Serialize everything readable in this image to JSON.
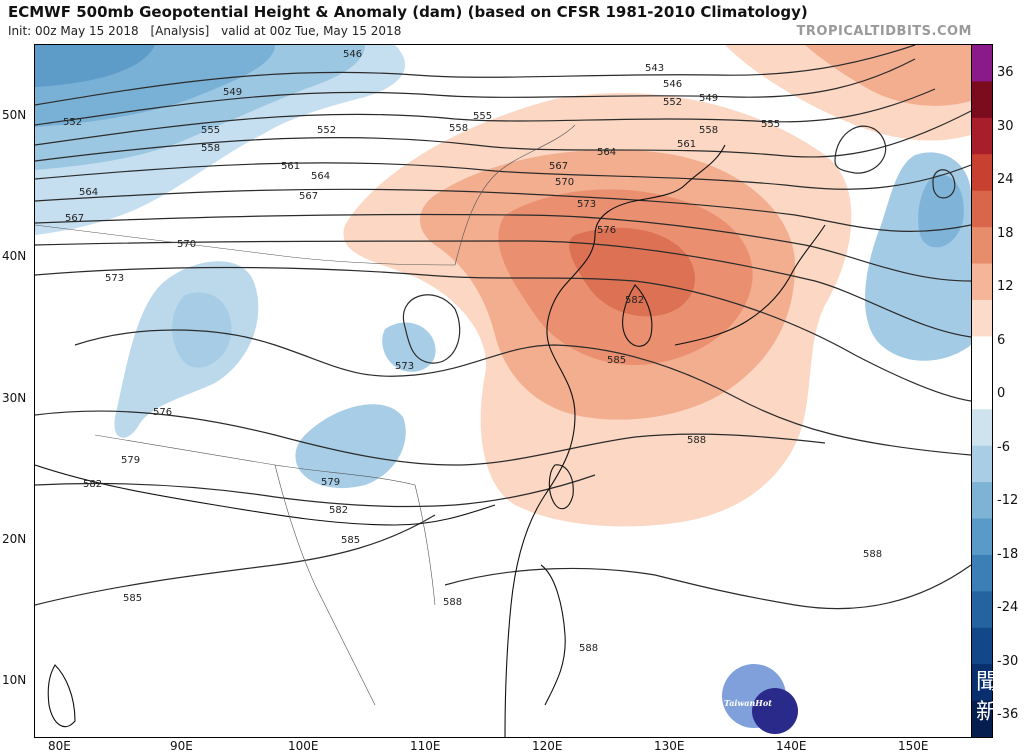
{
  "header": {
    "title": "ECMWF 500mb Geopotential Height & Anomaly (dam) (based on CFSR 1981-2010 Climatology)",
    "init": "Init: 00z May 15 2018",
    "analysis": "[Analysis]",
    "valid": "valid at 00z Tue, May 15 2018",
    "brand": "TROPICALTIDBITS.COM"
  },
  "map": {
    "lat_labels": [
      "50N",
      "40N",
      "30N",
      "20N",
      "10N"
    ],
    "lon_labels": [
      "80E",
      "90E",
      "100E",
      "110E",
      "120E",
      "130E",
      "140E",
      "150E"
    ],
    "contour_labels": [
      "546",
      "543",
      "546",
      "549",
      "549",
      "552",
      "552",
      "552",
      "555",
      "555",
      "555",
      "558",
      "558",
      "558",
      "561",
      "561",
      "564",
      "564",
      "564",
      "567",
      "567",
      "567",
      "570",
      "570",
      "573",
      "573",
      "573",
      "576",
      "576",
      "579",
      "579",
      "582",
      "582",
      "582",
      "585",
      "585",
      "585",
      "588",
      "588",
      "588",
      "588"
    ],
    "anomaly_colors": {
      "warm_strong": "#d96a4e",
      "warm_mid": "#ef9f80",
      "warm_light": "#fbd6c3",
      "cool_light": "#bfdaea",
      "cool_mid": "#8fbedd",
      "cool_strong": "#5f9cc9"
    }
  },
  "colorbar": {
    "labels": [
      "36",
      "30",
      "24",
      "18",
      "12",
      "6",
      "0",
      "-6",
      "-12",
      "-18",
      "-24",
      "-30",
      "-36"
    ],
    "colors": [
      "#8a1a8a",
      "#7a0c1e",
      "#a81e2a",
      "#c8402f",
      "#d9664a",
      "#e88d6c",
      "#f4b598",
      "#fbdccb",
      "#ffffff",
      "#ffffff",
      "#cfe3ef",
      "#a9cde4",
      "#7eb3d6",
      "#5a9ac8",
      "#3c7fb6",
      "#2563a0",
      "#12478a",
      "#0a2f6e",
      "#061d50"
    ]
  },
  "watermark": {
    "text": "TaiwanHot"
  },
  "corner": {
    "glyph": "聞 新"
  }
}
